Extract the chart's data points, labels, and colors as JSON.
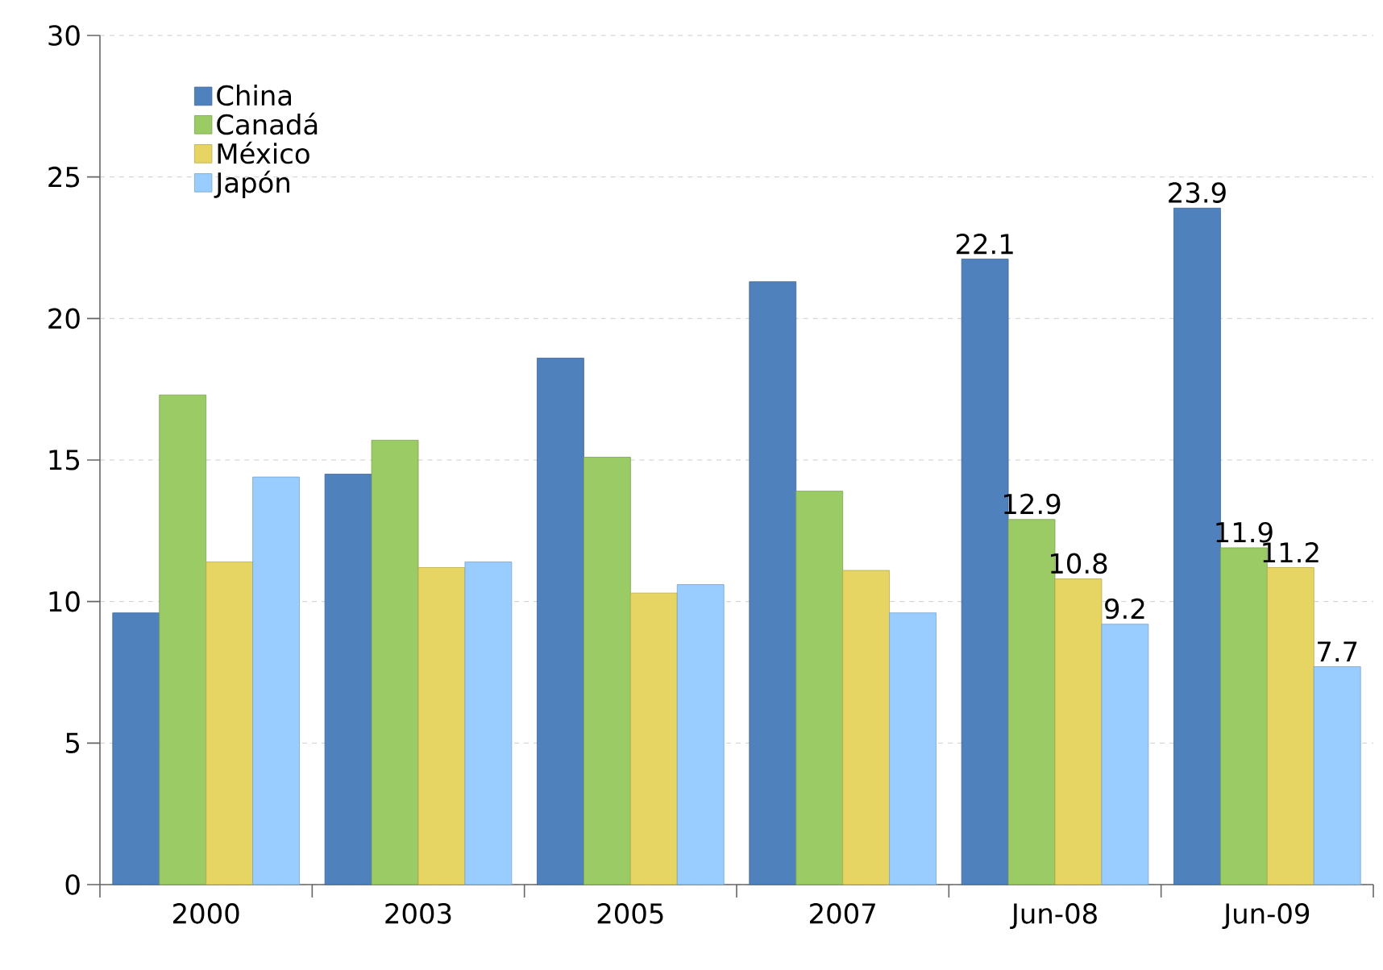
{
  "chart_data": {
    "type": "bar",
    "categories": [
      "2000",
      "2003",
      "2005",
      "2007",
      "Jun-08",
      "Jun-09"
    ],
    "series": [
      {
        "name": "China",
        "color": "#4f81bd",
        "values": [
          9.6,
          14.5,
          18.6,
          21.3,
          22.1,
          23.9
        ],
        "value_labels": [
          null,
          null,
          null,
          null,
          "22.1",
          "23.9"
        ]
      },
      {
        "name": "Canadá",
        "color": "#9bcb64",
        "values": [
          17.3,
          15.7,
          15.1,
          13.9,
          12.9,
          11.9
        ],
        "value_labels": [
          null,
          null,
          null,
          null,
          "12.9",
          "11.9"
        ]
      },
      {
        "name": "México",
        "color": "#e6d562",
        "values": [
          11.4,
          11.2,
          10.3,
          11.1,
          10.8,
          11.2
        ],
        "value_labels": [
          null,
          null,
          null,
          null,
          "10.8",
          "11.2"
        ]
      },
      {
        "name": "Japón",
        "color": "#99ccff",
        "values": [
          14.4,
          11.4,
          10.6,
          9.6,
          9.2,
          7.7
        ],
        "value_labels": [
          null,
          null,
          null,
          null,
          "9.2",
          "7.7"
        ]
      }
    ],
    "ylim": [
      0,
      30
    ],
    "yticks": [
      0,
      5,
      10,
      15,
      20,
      25,
      30
    ],
    "grid": "y",
    "legend": "top left"
  }
}
